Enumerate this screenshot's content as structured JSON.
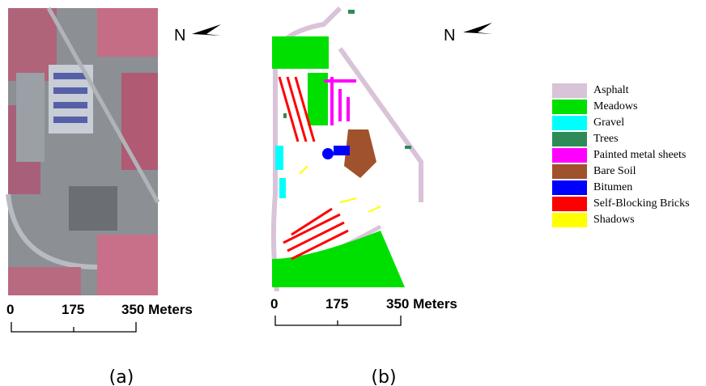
{
  "panels": [
    {
      "label": "(a)",
      "north": "N",
      "scale": [
        "0",
        "175",
        "350 Meters"
      ]
    },
    {
      "label": "(b)",
      "north": "N",
      "scale": [
        "0",
        "175",
        "350 Meters"
      ]
    }
  ],
  "legend": [
    {
      "name": "Asphalt",
      "color": "#d8c3d8"
    },
    {
      "name": "Meadows",
      "color": "#00e000"
    },
    {
      "name": "Gravel",
      "color": "#00ffff"
    },
    {
      "name": "Trees",
      "color": "#2e8b57"
    },
    {
      "name": "Painted metal sheets",
      "color": "#ff00ff"
    },
    {
      "name": "Bare Soil",
      "color": "#a0522d"
    },
    {
      "name": "Bitumen",
      "color": "#0000ff"
    },
    {
      "name": "Self-Blocking Bricks",
      "color": "#ff0000"
    },
    {
      "name": "Shadows",
      "color": "#ffff00"
    }
  ]
}
